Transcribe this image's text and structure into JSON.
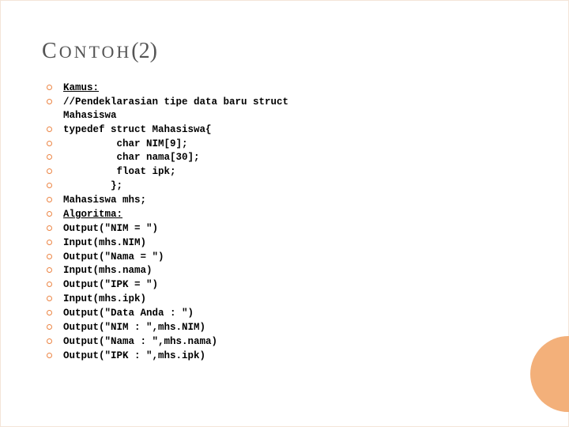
{
  "title": {
    "firstCap": "C",
    "firstRest": "ONTOH",
    "paren": "(2)"
  },
  "lines": [
    {
      "text": "Kamus:",
      "underline": true
    },
    {
      "text": "//Pendeklarasian tipe data baru struct\nMahasiswa"
    },
    {
      "text": "typedef struct Mahasiswa{"
    },
    {
      "text": "         char NIM[9];"
    },
    {
      "text": "         char nama[30];"
    },
    {
      "text": "         float ipk;"
    },
    {
      "text": "        };"
    },
    {
      "text": "Mahasiswa mhs;"
    },
    {
      "text": "Algoritma:",
      "underline": true
    },
    {
      "text": "Output(\"NIM = \")"
    },
    {
      "text": "Input(mhs.NIM)"
    },
    {
      "text": "Output(\"Nama = \")"
    },
    {
      "text": "Input(mhs.nama)"
    },
    {
      "text": "Output(\"IPK = \")"
    },
    {
      "text": "Input(mhs.ipk)"
    },
    {
      "text": "Output(\"Data Anda : \")"
    },
    {
      "text": "Output(\"NIM : \",mhs.NIM)"
    },
    {
      "text": "Output(\"Nama : \",mhs.nama)"
    },
    {
      "text": "Output(\"IPK : \",mhs.ipk)"
    }
  ],
  "colors": {
    "bulletBorder": "#ec8544",
    "circleFill": "#f3b07a",
    "titleColor": "#555555",
    "background": "#ffffff"
  }
}
